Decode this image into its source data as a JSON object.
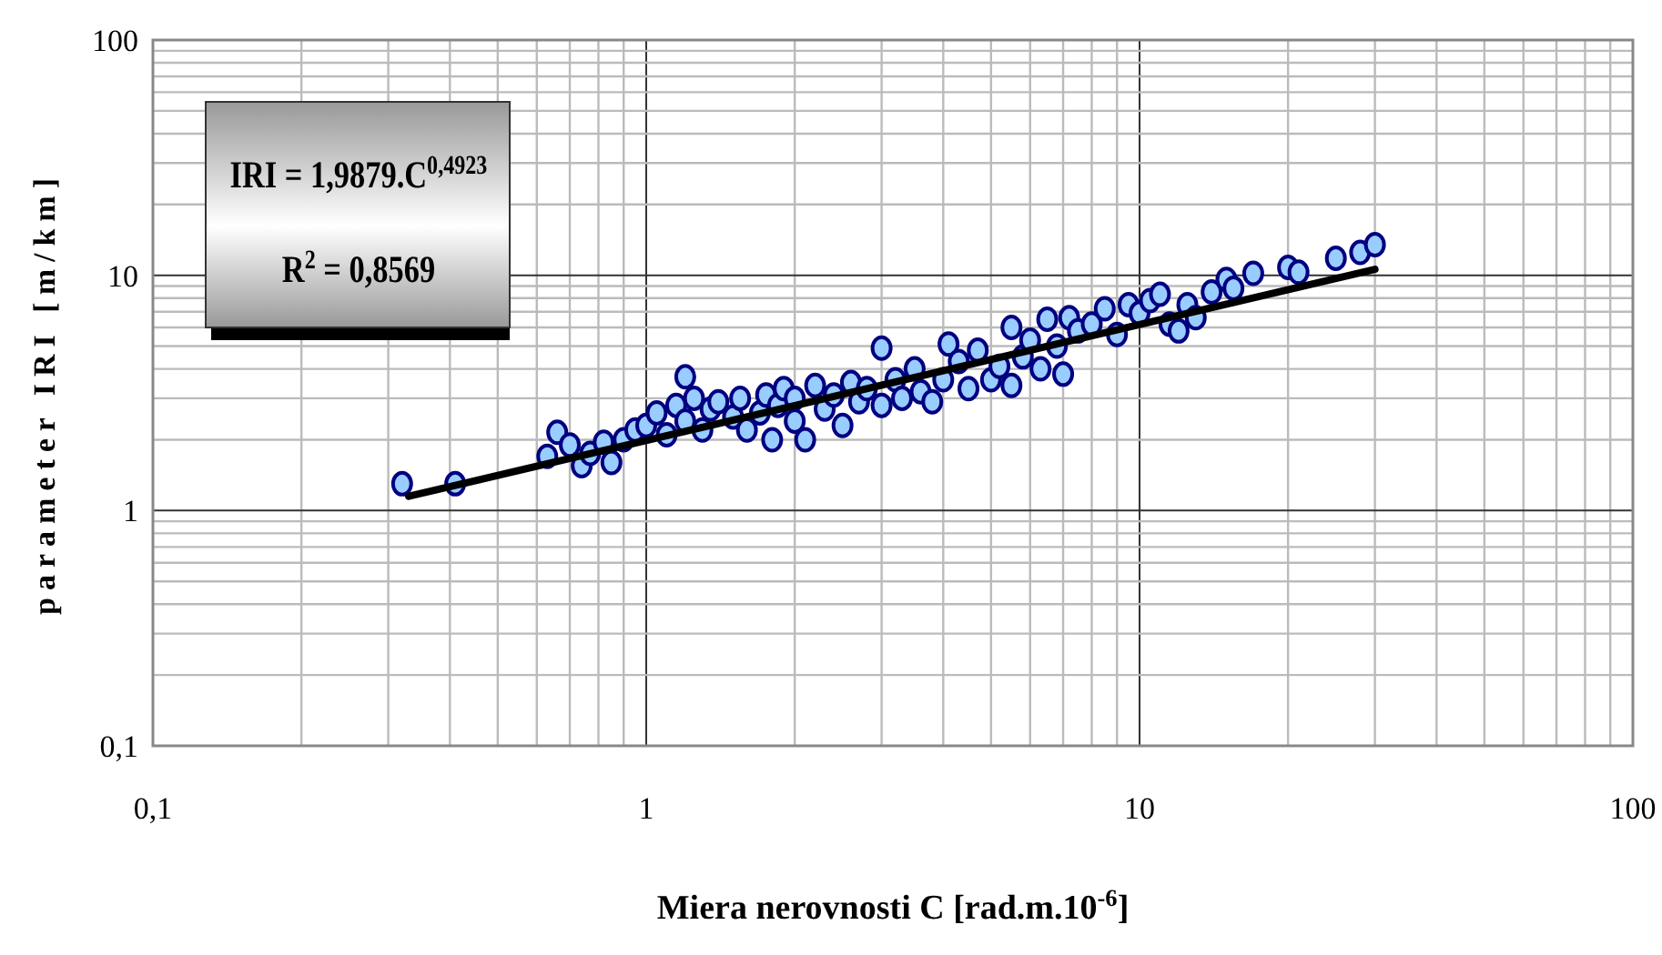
{
  "chart_data": {
    "type": "scatter",
    "xlabel": "Miera nerovnosti C [rad.m.10$^{-6}$]",
    "ylabel": "parameter IRI [m/km]",
    "log": "xy",
    "grid": true,
    "xlim": [
      0.1,
      100
    ],
    "ylim": [
      0.1,
      100
    ],
    "xticks": [
      {
        "value": 0.1,
        "label": "0,1"
      },
      1,
      10,
      100
    ],
    "yticks": [
      {
        "value": 0.1,
        "label": "0,1"
      },
      1,
      10,
      100
    ],
    "annotations": [
      "IRI = 1,9879.C$^{0,4923}$",
      "R$^{2}$ = 0,8569"
    ],
    "series": [
      {
        "marker": "circle",
        "color": "#99ccff",
        "x": [
          0.32,
          0.41,
          0.63,
          0.66,
          0.7,
          0.74,
          0.77,
          0.82,
          0.85,
          0.9,
          0.95,
          1.0,
          1.05,
          1.1,
          1.15,
          1.2,
          1.2,
          1.25,
          1.3,
          1.35,
          1.4,
          1.5,
          1.55,
          1.6,
          1.7,
          1.75,
          1.8,
          1.85,
          1.9,
          2.0,
          2.0,
          2.1,
          2.2,
          2.3,
          2.4,
          2.5,
          2.6,
          2.7,
          2.8,
          3.0,
          3.0,
          3.2,
          3.3,
          3.5,
          3.6,
          3.8,
          4.0,
          4.1,
          4.3,
          4.5,
          4.7,
          5.0,
          5.2,
          5.5,
          5.5,
          5.8,
          6.0,
          6.3,
          6.5,
          6.8,
          7.0,
          7.2,
          7.5,
          8.0,
          8.5,
          9.0,
          9.5,
          10,
          10.5,
          11,
          11.5,
          12,
          12.5,
          13,
          14,
          15,
          15.5,
          17,
          20,
          21,
          25,
          28,
          30
        ],
        "values": [
          1.3,
          1.3,
          1.7,
          2.15,
          1.9,
          1.55,
          1.75,
          1.95,
          1.6,
          2.0,
          2.2,
          2.3,
          2.6,
          2.1,
          2.8,
          3.7,
          2.4,
          3.0,
          2.2,
          2.7,
          2.9,
          2.5,
          3.0,
          2.2,
          2.6,
          3.1,
          2.0,
          2.8,
          3.3,
          2.4,
          3.0,
          2.0,
          3.4,
          2.7,
          3.1,
          2.3,
          3.5,
          2.9,
          3.3,
          4.9,
          2.8,
          3.6,
          3.0,
          4.0,
          3.2,
          2.9,
          3.6,
          5.1,
          4.3,
          3.3,
          4.8,
          3.6,
          4.1,
          6.0,
          3.4,
          4.5,
          5.3,
          4.0,
          6.5,
          5.0,
          3.8,
          6.6,
          5.8,
          6.2,
          7.2,
          5.6,
          7.5,
          6.9,
          7.8,
          8.3,
          6.2,
          5.8,
          7.5,
          6.6,
          8.5,
          9.6,
          8.8,
          10.2,
          10.8,
          10.3,
          11.8,
          12.5,
          13.5
        ]
      },
      {
        "type": "line",
        "color": "#000000",
        "x": [
          0.33,
          30
        ],
        "values": [
          1.15,
          10.6
        ]
      }
    ]
  }
}
